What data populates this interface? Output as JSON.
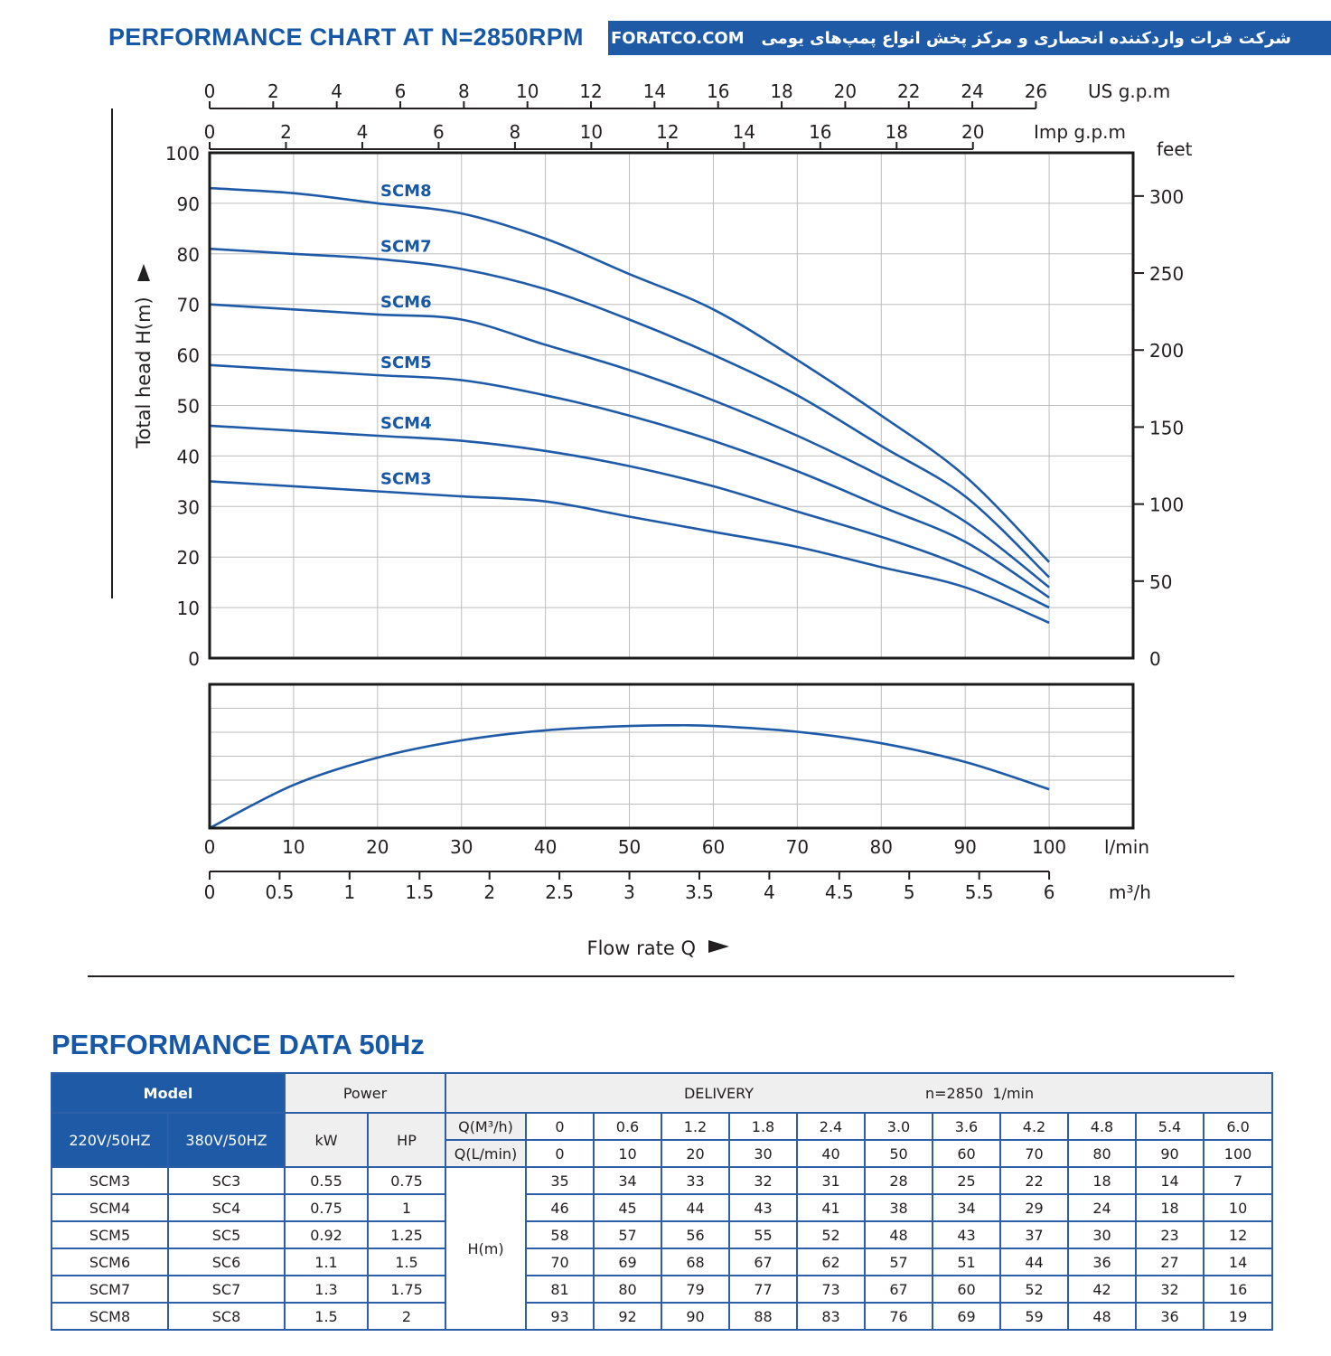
{
  "header": {
    "title": "PERFORMANCE CHART AT N=2850RPM",
    "banner_persian": "شرکت فرات واردکننده انحصاری و مرکز پخش انواع پمپ‌های یومی",
    "banner_site": "FORATCO.COM"
  },
  "colors": {
    "brand_blue": "#1658a6",
    "curve": "#1f5aa7",
    "banner_bg": "#1f5aa7",
    "table_border": "#2c5fa8"
  },
  "chart_data": [
    {
      "type": "line",
      "title": "",
      "xlabel": "Flow rate Q",
      "ylabel": "Total head H(m)",
      "xlim": [
        0,
        110
      ],
      "ylim": [
        0,
        100
      ],
      "grid": true,
      "x_unit": "l/min",
      "x": [
        0,
        10,
        20,
        30,
        40,
        50,
        60,
        70,
        80,
        90,
        100
      ],
      "series": [
        {
          "name": "SCM8",
          "values": [
            93,
            92,
            90,
            88,
            83,
            76,
            69,
            59,
            48,
            36,
            19
          ]
        },
        {
          "name": "SCM7",
          "values": [
            81,
            80,
            79,
            77,
            73,
            67,
            60,
            52,
            42,
            32,
            16
          ]
        },
        {
          "name": "SCM6",
          "values": [
            70,
            69,
            68,
            67,
            62,
            57,
            51,
            44,
            36,
            27,
            14
          ]
        },
        {
          "name": "SCM5",
          "values": [
            58,
            57,
            56,
            55,
            52,
            48,
            43,
            37,
            30,
            23,
            12
          ]
        },
        {
          "name": "SCM4",
          "values": [
            46,
            45,
            44,
            43,
            41,
            38,
            34,
            29,
            24,
            18,
            10
          ]
        },
        {
          "name": "SCM3",
          "values": [
            35,
            34,
            33,
            32,
            31,
            28,
            25,
            22,
            18,
            14,
            7
          ]
        }
      ],
      "y_ticks": [
        0,
        10,
        20,
        30,
        40,
        50,
        60,
        70,
        80,
        90,
        100
      ],
      "right_axis": {
        "label": "feet",
        "ticks": [
          0,
          50,
          100,
          150,
          200,
          250,
          300
        ],
        "m_per_unit": 0.3048
      },
      "top_axes": [
        {
          "label": "US g.p.m",
          "ticks": [
            0,
            2,
            4,
            6,
            8,
            10,
            12,
            14,
            16,
            18,
            20,
            22,
            24,
            26
          ],
          "lpm_per_unit": 3.78541
        },
        {
          "label": "Imp g.p.m",
          "ticks": [
            0,
            2,
            4,
            6,
            8,
            10,
            12,
            14,
            16,
            18,
            20
          ],
          "lpm_per_unit": 4.54609
        }
      ],
      "bottom_axes": [
        {
          "label": "l/min",
          "ticks": [
            0,
            10,
            20,
            30,
            40,
            50,
            60,
            70,
            80,
            90,
            100
          ]
        },
        {
          "label": "m³/h",
          "ticks": [
            "0",
            "0.5",
            "1",
            "1.5",
            "2",
            "2.5",
            "3",
            "3.5",
            "4",
            "4.5",
            "5",
            "5.5",
            "6"
          ]
        }
      ]
    },
    {
      "type": "line",
      "title": "",
      "x": [
        0,
        10,
        20,
        30,
        40,
        50,
        55,
        60,
        70,
        80,
        90,
        100
      ],
      "series": [
        {
          "values": [
            0,
            30,
            49,
            61,
            68,
            71,
            71.5,
            71,
            67,
            59,
            46,
            27
          ]
        }
      ],
      "ylim": [
        0,
        100
      ],
      "grid": true
    }
  ],
  "table": {
    "heading": "PERFORMANCE DATA 50Hz",
    "model_label": "Model",
    "power_label": "Power",
    "delivery_label": "DELIVERY",
    "speed_label": "n=2850  1/min",
    "col_220": "220V/50HZ",
    "col_380": "380V/50HZ",
    "kw_label": "kW",
    "hp_label": "HP",
    "q_m3h_label": "Q(M³/h)",
    "q_lmin_label": "Q(L/min)",
    "h_label": "H(m)",
    "q_m3h": [
      "0",
      "0.6",
      "1.2",
      "1.8",
      "2.4",
      "3.0",
      "3.6",
      "4.2",
      "4.8",
      "5.4",
      "6.0"
    ],
    "q_lmin": [
      "0",
      "10",
      "20",
      "30",
      "40",
      "50",
      "60",
      "70",
      "80",
      "90",
      "100"
    ],
    "rows": [
      {
        "m220": "SCM3",
        "m380": "SC3",
        "kw": "0.55",
        "hp": "0.75",
        "h": [
          "35",
          "34",
          "33",
          "32",
          "31",
          "28",
          "25",
          "22",
          "18",
          "14",
          "7"
        ]
      },
      {
        "m220": "SCM4",
        "m380": "SC4",
        "kw": "0.75",
        "hp": "1",
        "h": [
          "46",
          "45",
          "44",
          "43",
          "41",
          "38",
          "34",
          "29",
          "24",
          "18",
          "10"
        ]
      },
      {
        "m220": "SCM5",
        "m380": "SC5",
        "kw": "0.92",
        "hp": "1.25",
        "h": [
          "58",
          "57",
          "56",
          "55",
          "52",
          "48",
          "43",
          "37",
          "30",
          "23",
          "12"
        ]
      },
      {
        "m220": "SCM6",
        "m380": "SC6",
        "kw": "1.1",
        "hp": "1.5",
        "h": [
          "70",
          "69",
          "68",
          "67",
          "62",
          "57",
          "51",
          "44",
          "36",
          "27",
          "14"
        ]
      },
      {
        "m220": "SCM7",
        "m380": "SC7",
        "kw": "1.3",
        "hp": "1.75",
        "h": [
          "81",
          "80",
          "79",
          "77",
          "73",
          "67",
          "60",
          "52",
          "42",
          "32",
          "16"
        ]
      },
      {
        "m220": "SCM8",
        "m380": "SC8",
        "kw": "1.5",
        "hp": "2",
        "h": [
          "93",
          "92",
          "90",
          "88",
          "83",
          "76",
          "69",
          "59",
          "48",
          "36",
          "19"
        ]
      }
    ]
  }
}
